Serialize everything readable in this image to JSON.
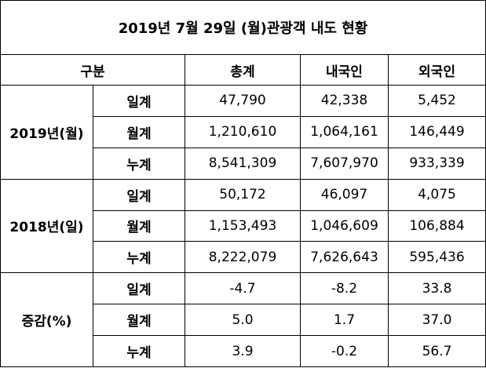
{
  "title": "2019년 7월 29일 (월)관광객 내도 현황",
  "header": {
    "group_label": "구분",
    "columns": [
      "총계",
      "내국인",
      "외국인"
    ]
  },
  "groups": [
    {
      "label": "2019년(월)",
      "rows": [
        {
          "label": "일계",
          "values": [
            "47,790",
            "42,338",
            "5,452"
          ]
        },
        {
          "label": "월계",
          "values": [
            "1,210,610",
            "1,064,161",
            "146,449"
          ]
        },
        {
          "label": "누계",
          "values": [
            "8,541,309",
            "7,607,970",
            "933,339"
          ]
        }
      ]
    },
    {
      "label": "2018년(일)",
      "rows": [
        {
          "label": "일계",
          "values": [
            "50,172",
            "46,097",
            "4,075"
          ]
        },
        {
          "label": "월계",
          "values": [
            "1,153,493",
            "1,046,609",
            "106,884"
          ]
        },
        {
          "label": "누계",
          "values": [
            "8,222,079",
            "7,626,643",
            "595,436"
          ]
        }
      ]
    },
    {
      "label": "증감(%)",
      "rows": [
        {
          "label": "일계",
          "values": [
            "-4.7",
            "-8.2",
            "33.8"
          ]
        },
        {
          "label": "월계",
          "values": [
            "5.0",
            "1.7",
            "37.0"
          ]
        },
        {
          "label": "누계",
          "values": [
            "3.9",
            "-0.2",
            "56.7"
          ]
        }
      ]
    }
  ]
}
